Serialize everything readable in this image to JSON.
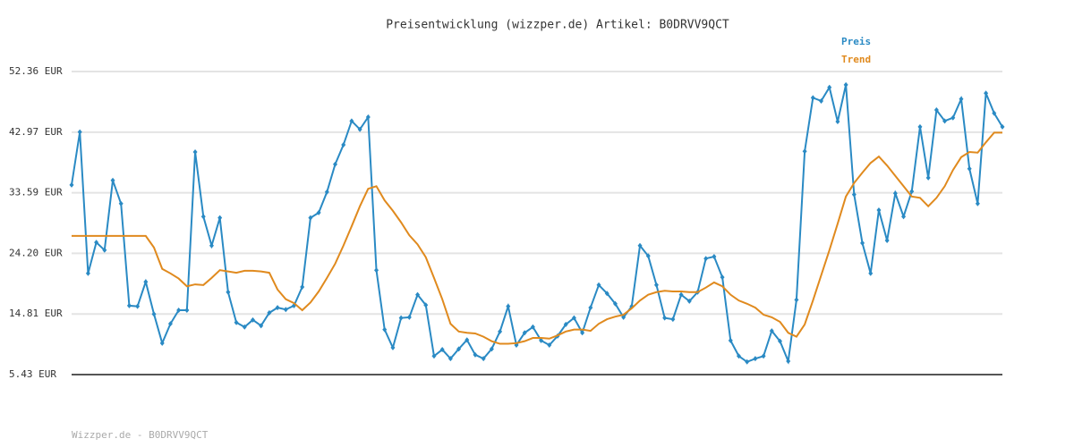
{
  "chart_data": {
    "type": "line",
    "title": "Preisentwicklung (wizzper.de) Artikel: B0DRVV9QCT",
    "footer": "Wizzper.de - B0DRVV9QCT",
    "ylim": [
      5.43,
      52.36
    ],
    "yticks": [
      {
        "value": 5.43,
        "label": "5.43 EUR"
      },
      {
        "value": 14.81,
        "label": "14.81 EUR"
      },
      {
        "value": 24.2,
        "label": "24.20 EUR"
      },
      {
        "value": 33.59,
        "label": "33.59 EUR"
      },
      {
        "value": 42.97,
        "label": "42.97 EUR"
      },
      {
        "value": 52.36,
        "label": "52.36 EUR"
      }
    ],
    "grid": true,
    "series": [
      {
        "name": "Preis",
        "color": "#2a8ac4",
        "values": [
          34.8,
          43.0,
          21.1,
          25.9,
          24.7,
          35.5,
          31.9,
          16.1,
          16.0,
          19.8,
          14.8,
          10.3,
          13.3,
          15.4,
          15.4,
          39.9,
          29.9,
          25.4,
          29.7,
          18.2,
          13.5,
          12.8,
          13.9,
          13.0,
          15.0,
          15.8,
          15.5,
          16.1,
          19.0,
          29.7,
          30.5,
          33.7,
          38.0,
          41.0,
          44.7,
          43.4,
          45.3,
          21.6,
          12.4,
          9.6,
          14.2,
          14.3,
          17.8,
          16.2,
          8.3,
          9.3,
          7.9,
          9.4,
          10.8,
          8.5,
          7.9,
          9.4,
          12.1,
          16.0,
          10.0,
          11.9,
          12.8,
          10.7,
          10.0,
          11.4,
          13.2,
          14.2,
          11.9,
          15.8,
          19.3,
          18.0,
          16.4,
          14.3,
          16.0,
          25.4,
          23.8,
          19.3,
          14.2,
          14.0,
          17.8,
          16.8,
          18.2,
          23.4,
          23.7,
          20.5,
          10.7,
          8.3,
          7.4,
          7.9,
          8.3,
          12.2,
          10.6,
          7.5,
          17.0,
          40.0,
          48.3,
          47.8,
          49.9,
          44.6,
          50.3,
          33.3,
          25.8,
          21.1,
          30.9,
          26.2,
          33.5,
          29.9,
          33.8,
          43.8,
          35.9,
          46.4,
          44.7,
          45.2,
          48.1,
          37.3,
          31.9,
          49.0,
          45.9,
          43.8
        ]
      },
      {
        "name": "Trend",
        "color": "#e08a1e",
        "values": [
          26.9,
          26.9,
          26.9,
          26.9,
          26.9,
          26.9,
          26.9,
          26.9,
          26.9,
          26.9,
          25.1,
          21.8,
          21.1,
          20.3,
          19.1,
          19.4,
          19.3,
          20.4,
          21.6,
          21.4,
          21.2,
          21.5,
          21.5,
          21.4,
          21.2,
          18.6,
          17.1,
          16.5,
          15.4,
          16.6,
          18.3,
          20.4,
          22.6,
          25.4,
          28.4,
          31.5,
          34.2,
          34.6,
          32.4,
          30.8,
          29.0,
          27.0,
          25.6,
          23.6,
          20.4,
          17.1,
          13.3,
          12.1,
          11.9,
          11.8,
          11.3,
          10.6,
          10.2,
          10.2,
          10.3,
          10.6,
          11.1,
          11.1,
          11.0,
          11.5,
          12.1,
          12.4,
          12.4,
          12.2,
          13.3,
          14.0,
          14.4,
          14.7,
          15.7,
          16.9,
          17.8,
          18.2,
          18.4,
          18.3,
          18.3,
          18.2,
          18.2,
          18.9,
          19.7,
          19.1,
          17.8,
          16.9,
          16.4,
          15.8,
          14.7,
          14.3,
          13.6,
          11.9,
          11.3,
          13.2,
          16.9,
          20.8,
          24.7,
          28.8,
          33.0,
          35.1,
          36.7,
          38.2,
          39.2,
          37.8,
          36.2,
          34.6,
          33.0,
          32.8,
          31.5,
          32.8,
          34.6,
          37.1,
          39.1,
          39.9,
          39.8,
          41.4,
          42.9,
          42.9
        ]
      }
    ]
  }
}
